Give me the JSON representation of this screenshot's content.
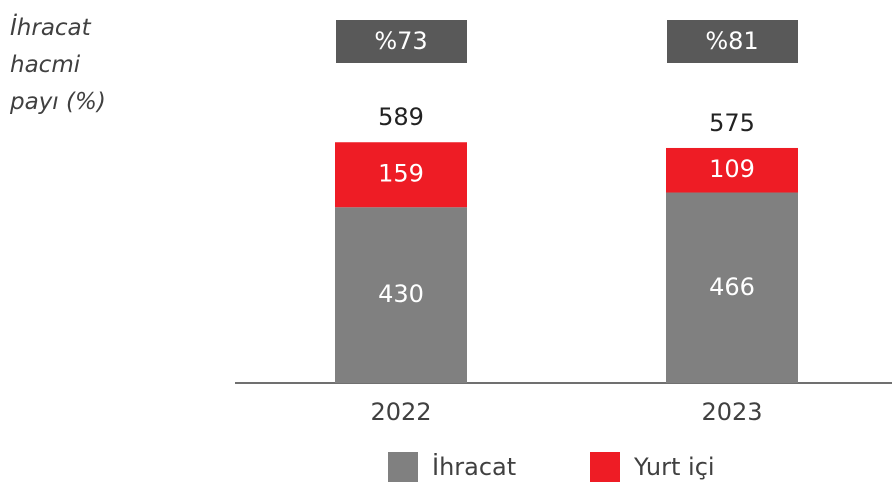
{
  "chart_data": {
    "type": "stacked_bar",
    "categories": [
      "2022",
      "2023"
    ],
    "series": [
      {
        "name": "İhracat",
        "color": "#808080",
        "values": [
          430,
          466
        ]
      },
      {
        "name": "Yurt içi",
        "color": "#ee1c25",
        "values": [
          159,
          109
        ]
      }
    ],
    "totals": [
      589,
      575
    ],
    "export_share": {
      "label": "İhracat hacmi payı (%)",
      "values": [
        73,
        81
      ],
      "value_labels": [
        "%73",
        "%81"
      ],
      "color": "#595959"
    },
    "ylim": [
      0,
      800
    ]
  }
}
